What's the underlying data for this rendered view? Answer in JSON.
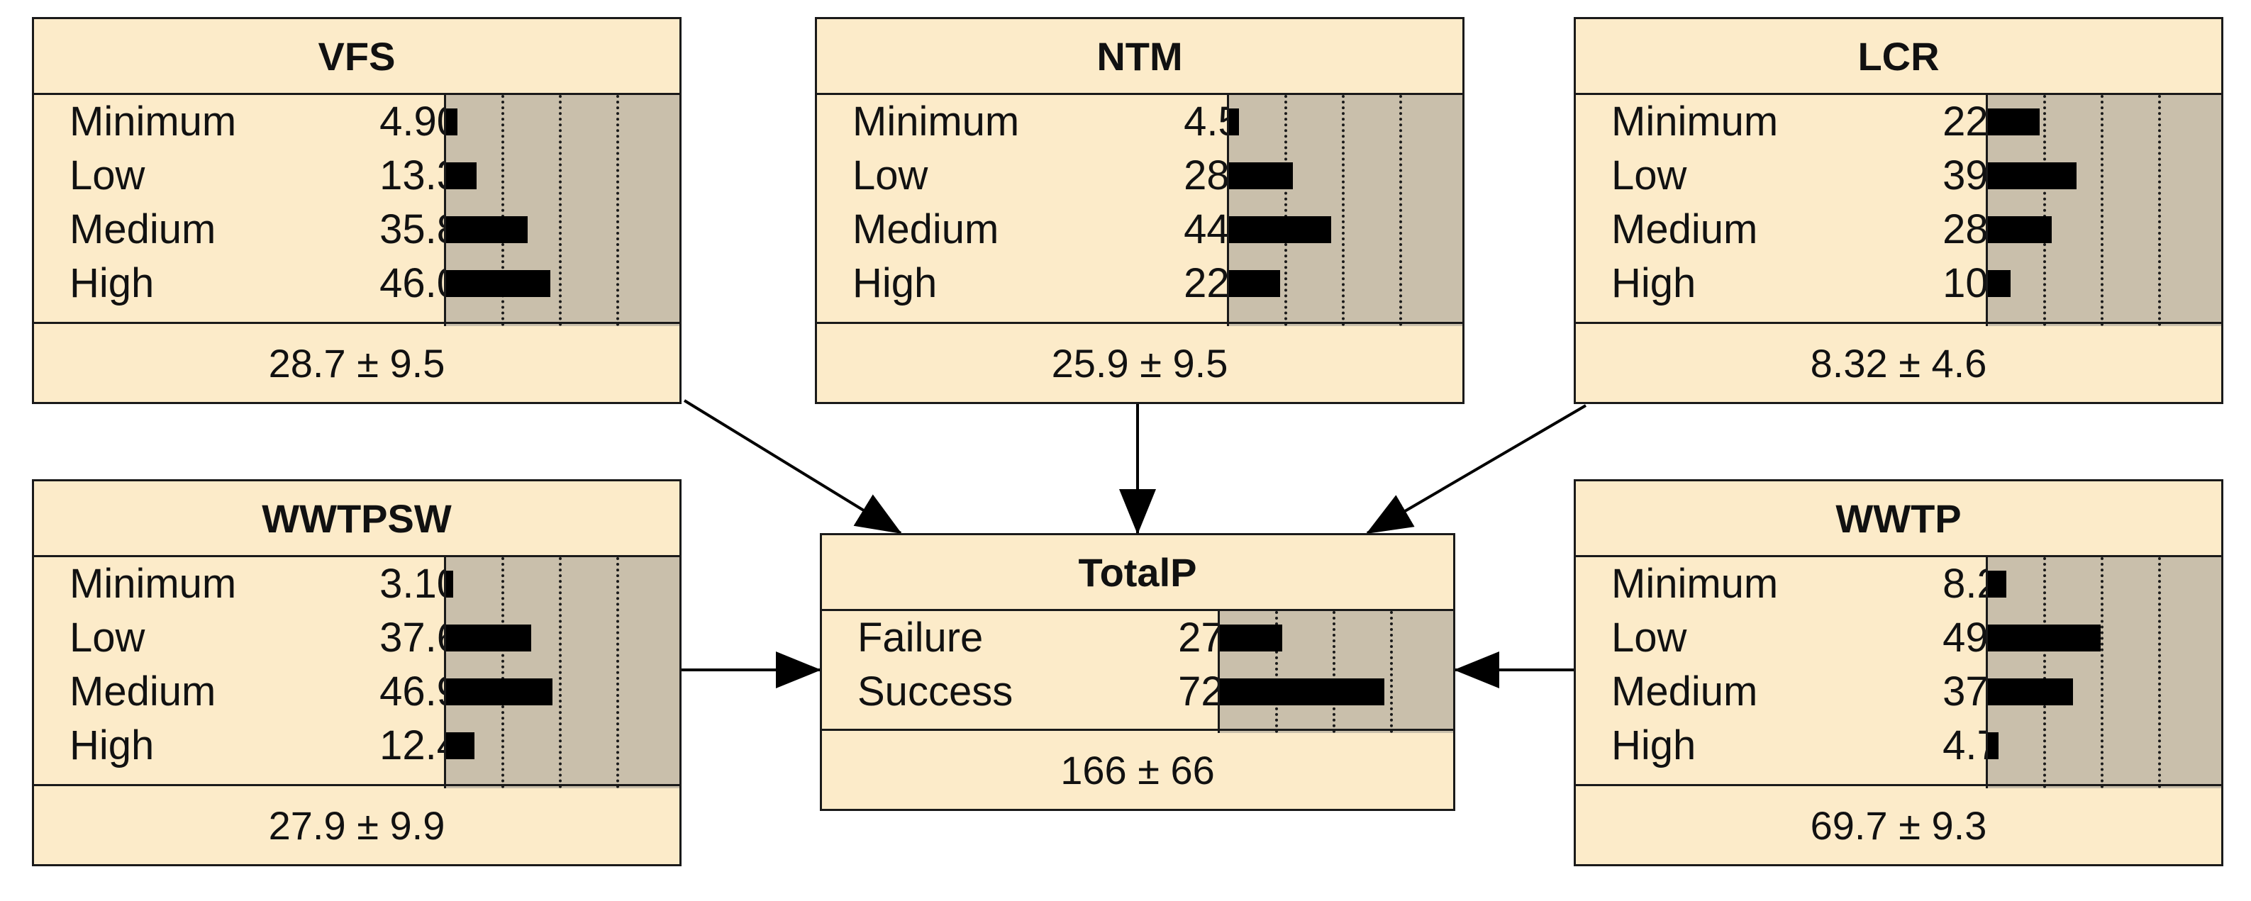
{
  "nodes": [
    {
      "id": "vfs",
      "title": "VFS",
      "states": [
        {
          "label": "Minimum",
          "value": "4.90",
          "pct": 4.9
        },
        {
          "label": "Low",
          "value": "13.3",
          "pct": 13.3
        },
        {
          "label": "Medium",
          "value": "35.8",
          "pct": 35.8
        },
        {
          "label": "High",
          "value": "46.0",
          "pct": 46.0
        }
      ],
      "summary": "28.7 ± 9.5"
    },
    {
      "id": "ntm",
      "title": "NTM",
      "states": [
        {
          "label": "Minimum",
          "value": "4.50",
          "pct": 4.5
        },
        {
          "label": "Low",
          "value": "28.0",
          "pct": 28.0
        },
        {
          "label": "Medium",
          "value": "44.9",
          "pct": 44.9
        },
        {
          "label": "High",
          "value": "22.6",
          "pct": 22.6
        }
      ],
      "summary": "25.9 ± 9.5"
    },
    {
      "id": "lcr",
      "title": "LCR",
      "states": [
        {
          "label": "Minimum",
          "value": "22.9",
          "pct": 22.9
        },
        {
          "label": "Low",
          "value": "39.1",
          "pct": 39.1
        },
        {
          "label": "Medium",
          "value": "28.0",
          "pct": 28.0
        },
        {
          "label": "High",
          "value": "10.0",
          "pct": 10.0
        }
      ],
      "summary": "8.32 ± 4.6"
    },
    {
      "id": "wwtpsw",
      "title": "WWTPSW",
      "states": [
        {
          "label": "Minimum",
          "value": "3.10",
          "pct": 3.1
        },
        {
          "label": "Low",
          "value": "37.6",
          "pct": 37.6
        },
        {
          "label": "Medium",
          "value": "46.9",
          "pct": 46.9
        },
        {
          "label": "High",
          "value": "12.4",
          "pct": 12.4
        }
      ],
      "summary": "27.9 ± 9.9"
    },
    {
      "id": "totalp",
      "title": "TotalP",
      "states": [
        {
          "label": "Failure",
          "value": "27.6",
          "pct": 27.6
        },
        {
          "label": "Success",
          "value": "72.4",
          "pct": 72.4
        }
      ],
      "summary": "166 ± 66"
    },
    {
      "id": "wwtp",
      "title": "WWTP",
      "states": [
        {
          "label": "Minimum",
          "value": "8.20",
          "pct": 8.2
        },
        {
          "label": "Low",
          "value": "49.7",
          "pct": 49.7
        },
        {
          "label": "Medium",
          "value": "37.4",
          "pct": 37.4
        },
        {
          "label": "High",
          "value": "4.70",
          "pct": 4.7
        }
      ],
      "summary": "69.7 ± 9.3"
    }
  ],
  "edges": [
    {
      "from": "vfs",
      "to": "totalp"
    },
    {
      "from": "ntm",
      "to": "totalp"
    },
    {
      "from": "lcr",
      "to": "totalp"
    },
    {
      "from": "wwtpsw",
      "to": "totalp"
    },
    {
      "from": "wwtp",
      "to": "totalp"
    }
  ],
  "colors": {
    "node_fill": "#fcebc9",
    "bar_area": "#c9bfab",
    "bar": "#000000",
    "border": "#1a1a1a"
  }
}
